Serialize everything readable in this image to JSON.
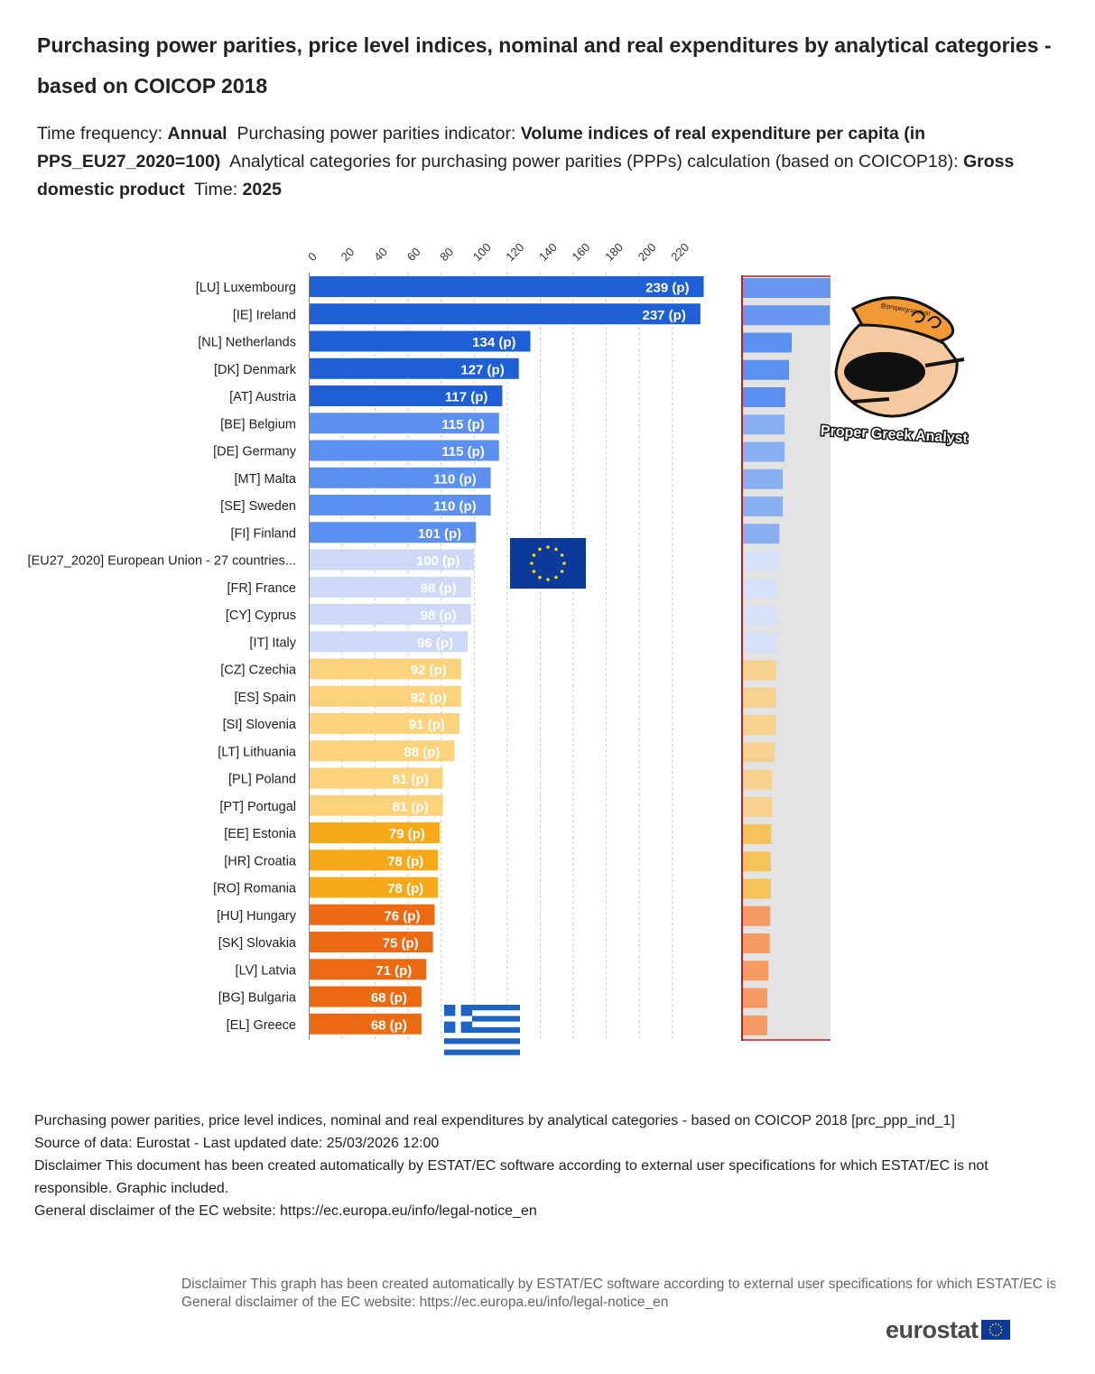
{
  "header": {
    "title": "Purchasing power parities, price level indices, nominal and real expenditures by analytical categories - based on COICOP 2018",
    "freq_label": "Time frequency:",
    "freq_value": "Annual",
    "indicator_label": "Purchasing power parities indicator:",
    "indicator_value": "Volume indices of real expenditure per capita (in PPS_EU27_2020=100)",
    "category_label": "Analytical categories for purchasing power parities (PPPs) calculation (based on COICOP18):",
    "category_value": "Gross domestic product",
    "time_label": "Time:",
    "time_value": "2025"
  },
  "chart_data": {
    "type": "bar",
    "orientation": "horizontal",
    "xlim": [
      0,
      240
    ],
    "xticks": [
      0,
      20,
      40,
      60,
      80,
      100,
      120,
      140,
      160,
      180,
      200,
      220
    ],
    "grid": true,
    "categories": [
      "[LU] Luxembourg",
      "[IE] Ireland",
      "[NL] Netherlands",
      "[DK] Denmark",
      "[AT] Austria",
      "[BE] Belgium",
      "[DE] Germany",
      "[MT] Malta",
      "[SE] Sweden",
      "[FI] Finland",
      "[EU27_2020] European Union - 27 countries...",
      "[FR] France",
      "[CY] Cyprus",
      "[IT] Italy",
      "[CZ] Czechia",
      "[ES] Spain",
      "[SI] Slovenia",
      "[LT] Lithuania",
      "[PL] Poland",
      "[PT] Portugal",
      "[EE] Estonia",
      "[HR] Croatia",
      "[RO] Romania",
      "[HU] Hungary",
      "[SK] Slovakia",
      "[LV] Latvia",
      "[BG] Bulgaria",
      "[EL] Greece"
    ],
    "values": [
      239,
      237,
      134,
      127,
      117,
      115,
      115,
      110,
      110,
      101,
      100,
      98,
      98,
      96,
      92,
      92,
      91,
      88,
      81,
      81,
      79,
      78,
      78,
      76,
      75,
      71,
      68,
      68
    ],
    "labels": [
      "239 (p)",
      "237 (p)",
      "134 (p)",
      "127 (p)",
      "117 (p)",
      "115 (p)",
      "115 (p)",
      "110 (p)",
      "110 (p)",
      "101 (p)",
      "100 (p)",
      "98 (p)",
      "98 (p)",
      "96 (p)",
      "92 (p)",
      "92 (p)",
      "91 (p)",
      "88 (p)",
      "81 (p)",
      "81 (p)",
      "79 (p)",
      "78 (p)",
      "78 (p)",
      "76 (p)",
      "75 (p)",
      "71 (p)",
      "68 (p)",
      "68 (p)"
    ],
    "color_groups": [
      {
        "indices": [
          0,
          1,
          2,
          3,
          4
        ],
        "color": "#1e5fd6",
        "label_color": "#ffffff"
      },
      {
        "indices": [
          5,
          6,
          7,
          8,
          9
        ],
        "color": "#5b8ff0",
        "label_color": "#ffffff"
      },
      {
        "indices": [
          10,
          11,
          12,
          13
        ],
        "color": "#cdd9f7",
        "label_color": "#ffffff"
      },
      {
        "indices": [
          14,
          15,
          16,
          17,
          18,
          19
        ],
        "color": "#fdd27c",
        "label_color": "#ffffff"
      },
      {
        "indices": [
          20,
          21,
          22
        ],
        "color": "#f7a91a",
        "label_color": "#ffffff"
      },
      {
        "indices": [
          23,
          24,
          25,
          26,
          27
        ],
        "color": "#ec6a12",
        "label_color": "#ffffff"
      }
    ],
    "mini_chart_colors": [
      "#6797ee",
      "#6797ee",
      "#5b8ff0",
      "#5b8ff0",
      "#5b8ff0",
      "#89aef2",
      "#89aef2",
      "#89aef2",
      "#89aef2",
      "#89aef2",
      "#d6e0f7",
      "#d6e0f7",
      "#d6e0f7",
      "#d6e0f7",
      "#f7d190",
      "#f7d190",
      "#f7d190",
      "#f7d190",
      "#f7d190",
      "#f7d190",
      "#f5c35a",
      "#f5c35a",
      "#f5c35a",
      "#f59a63",
      "#f59a63",
      "#f59a63",
      "#f59a63",
      "#f59a63"
    ],
    "watermark_text": "Proper Greek Analyst",
    "watermark_handle": "@propergranalyst"
  },
  "footer": {
    "line1": "Purchasing power parities, price level indices, nominal and real expenditures by analytical categories - based on COICOP 2018 [prc_ppp_ind_1]",
    "line2": "Source of data: Eurostat - Last updated date: 25/03/2026 12:00",
    "line3": "Disclaimer This document has been created automatically by ESTAT/EC software according to external user specifications for which ESTAT/EC is not responsible. Graphic included.",
    "line4": "General disclaimer of the EC website: https://ec.europa.eu/info/legal-notice_en",
    "disclaimer2_line1": "Disclaimer This graph has been created automatically by ESTAT/EC software according to external user specifications for which ESTAT/EC is not responsible.",
    "disclaimer2_line2": "General disclaimer of the EC website: https://ec.europa.eu/info/legal-notice_en",
    "brand": "eurostat"
  },
  "colors": {
    "eu_blue": "#0b3a9a",
    "eu_star": "#ffd400",
    "greek_blue": "#1e63c4",
    "mini_border": "#b7202b",
    "mini_bg": "#e3e3e3",
    "grid": "#c8c8c8"
  }
}
